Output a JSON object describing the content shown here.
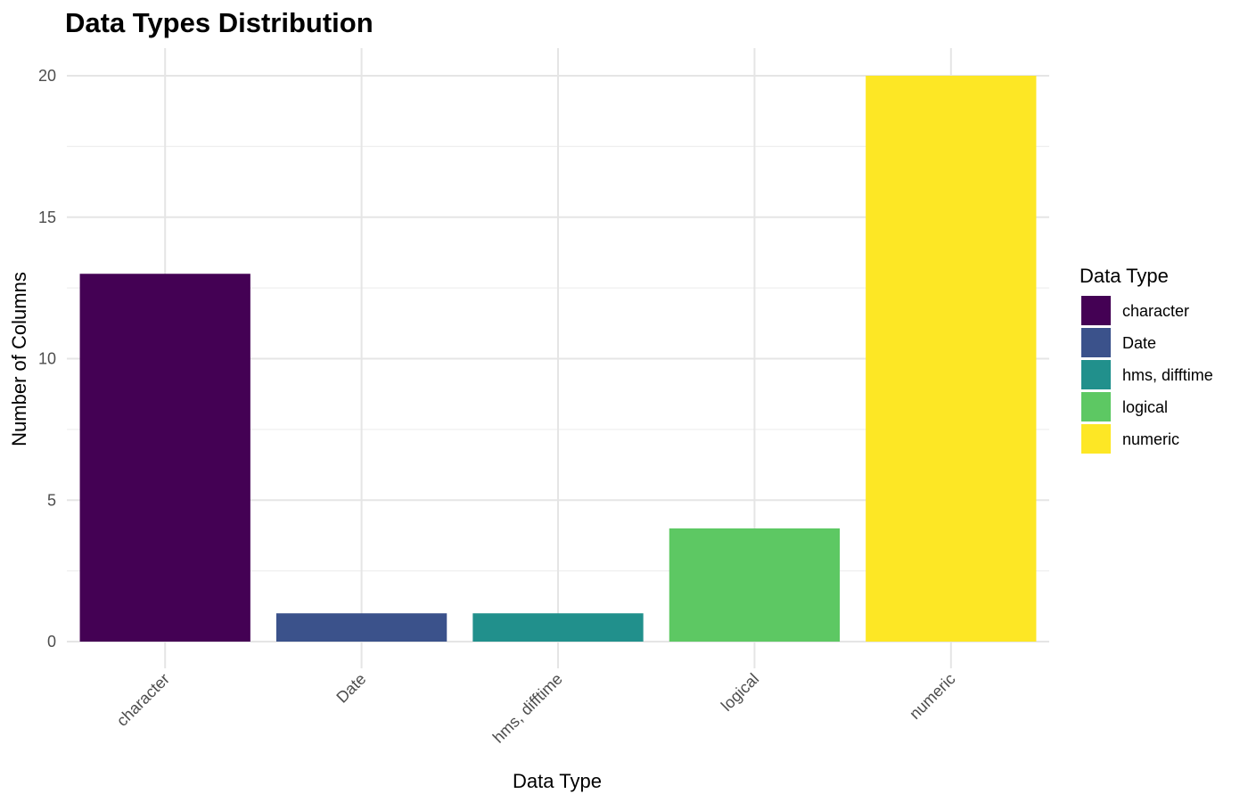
{
  "chart_data": {
    "type": "bar",
    "title": "Data Types Distribution",
    "xlabel": "Data Type",
    "ylabel": "Number of Columns",
    "categories": [
      "character",
      "Date",
      "hms, difftime",
      "logical",
      "numeric"
    ],
    "values": [
      13,
      1,
      1,
      4,
      20
    ],
    "colors": [
      "#440154",
      "#3b528b",
      "#21908c",
      "#5dc863",
      "#fde725"
    ],
    "ylim": [
      0,
      21
    ],
    "yticks": [
      0,
      5,
      10,
      15,
      20
    ],
    "grid": true,
    "legend": {
      "title": "Data Type",
      "position": "right",
      "entries": [
        "character",
        "Date",
        "hms, difftime",
        "logical",
        "numeric"
      ]
    }
  }
}
